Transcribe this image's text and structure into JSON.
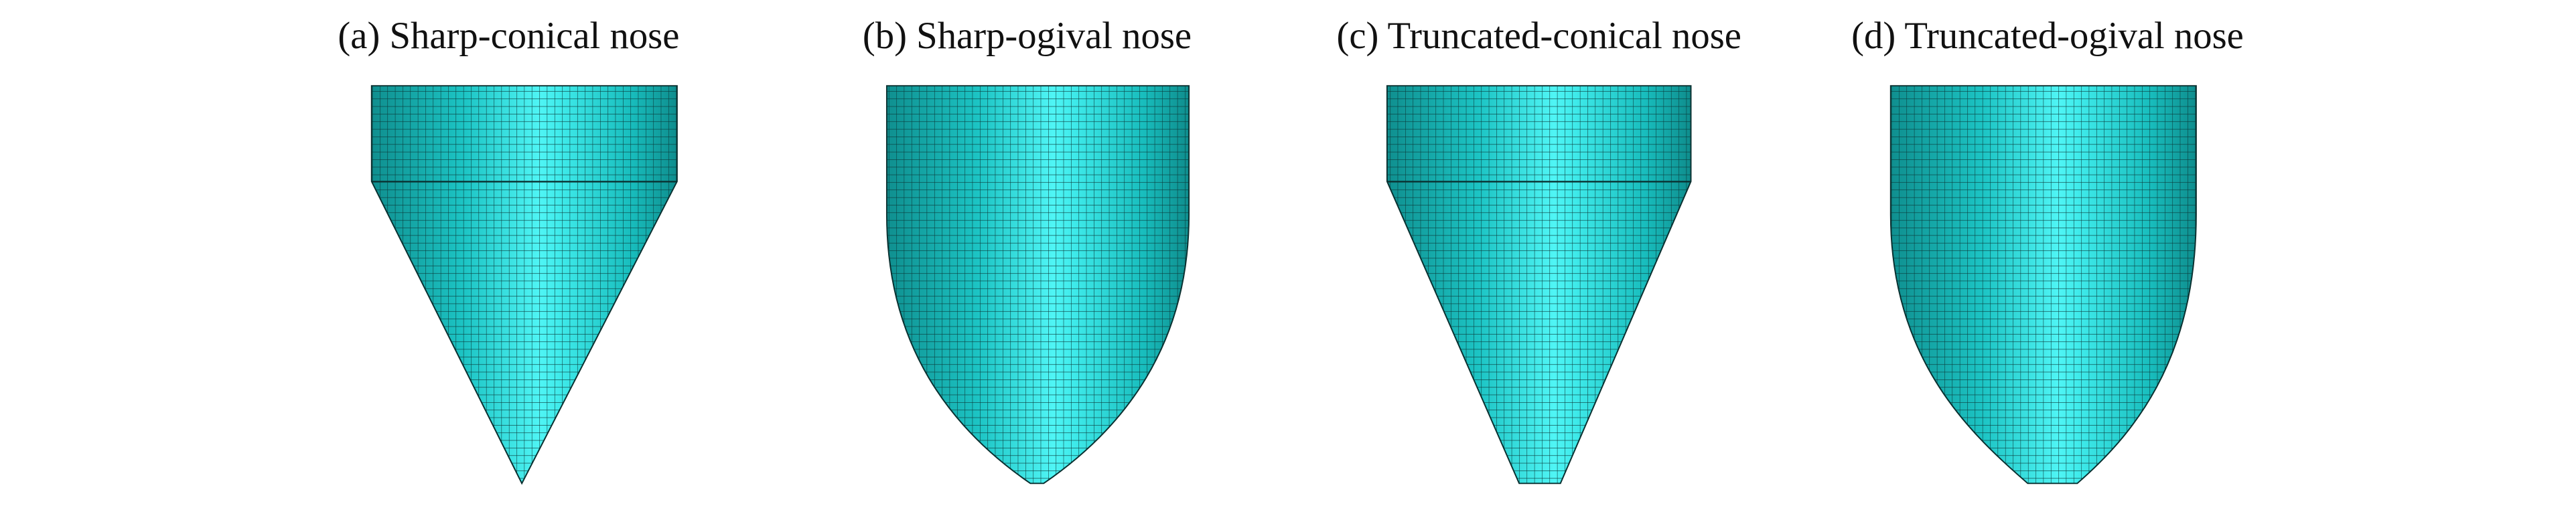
{
  "panels": [
    {
      "caption": "(a) Sharp-conical nose"
    },
    {
      "caption": "(b) Sharp-ogival nose"
    },
    {
      "caption": "(c) Truncated-conical nose"
    },
    {
      "caption": "(d) Truncated-ogival nose"
    }
  ]
}
